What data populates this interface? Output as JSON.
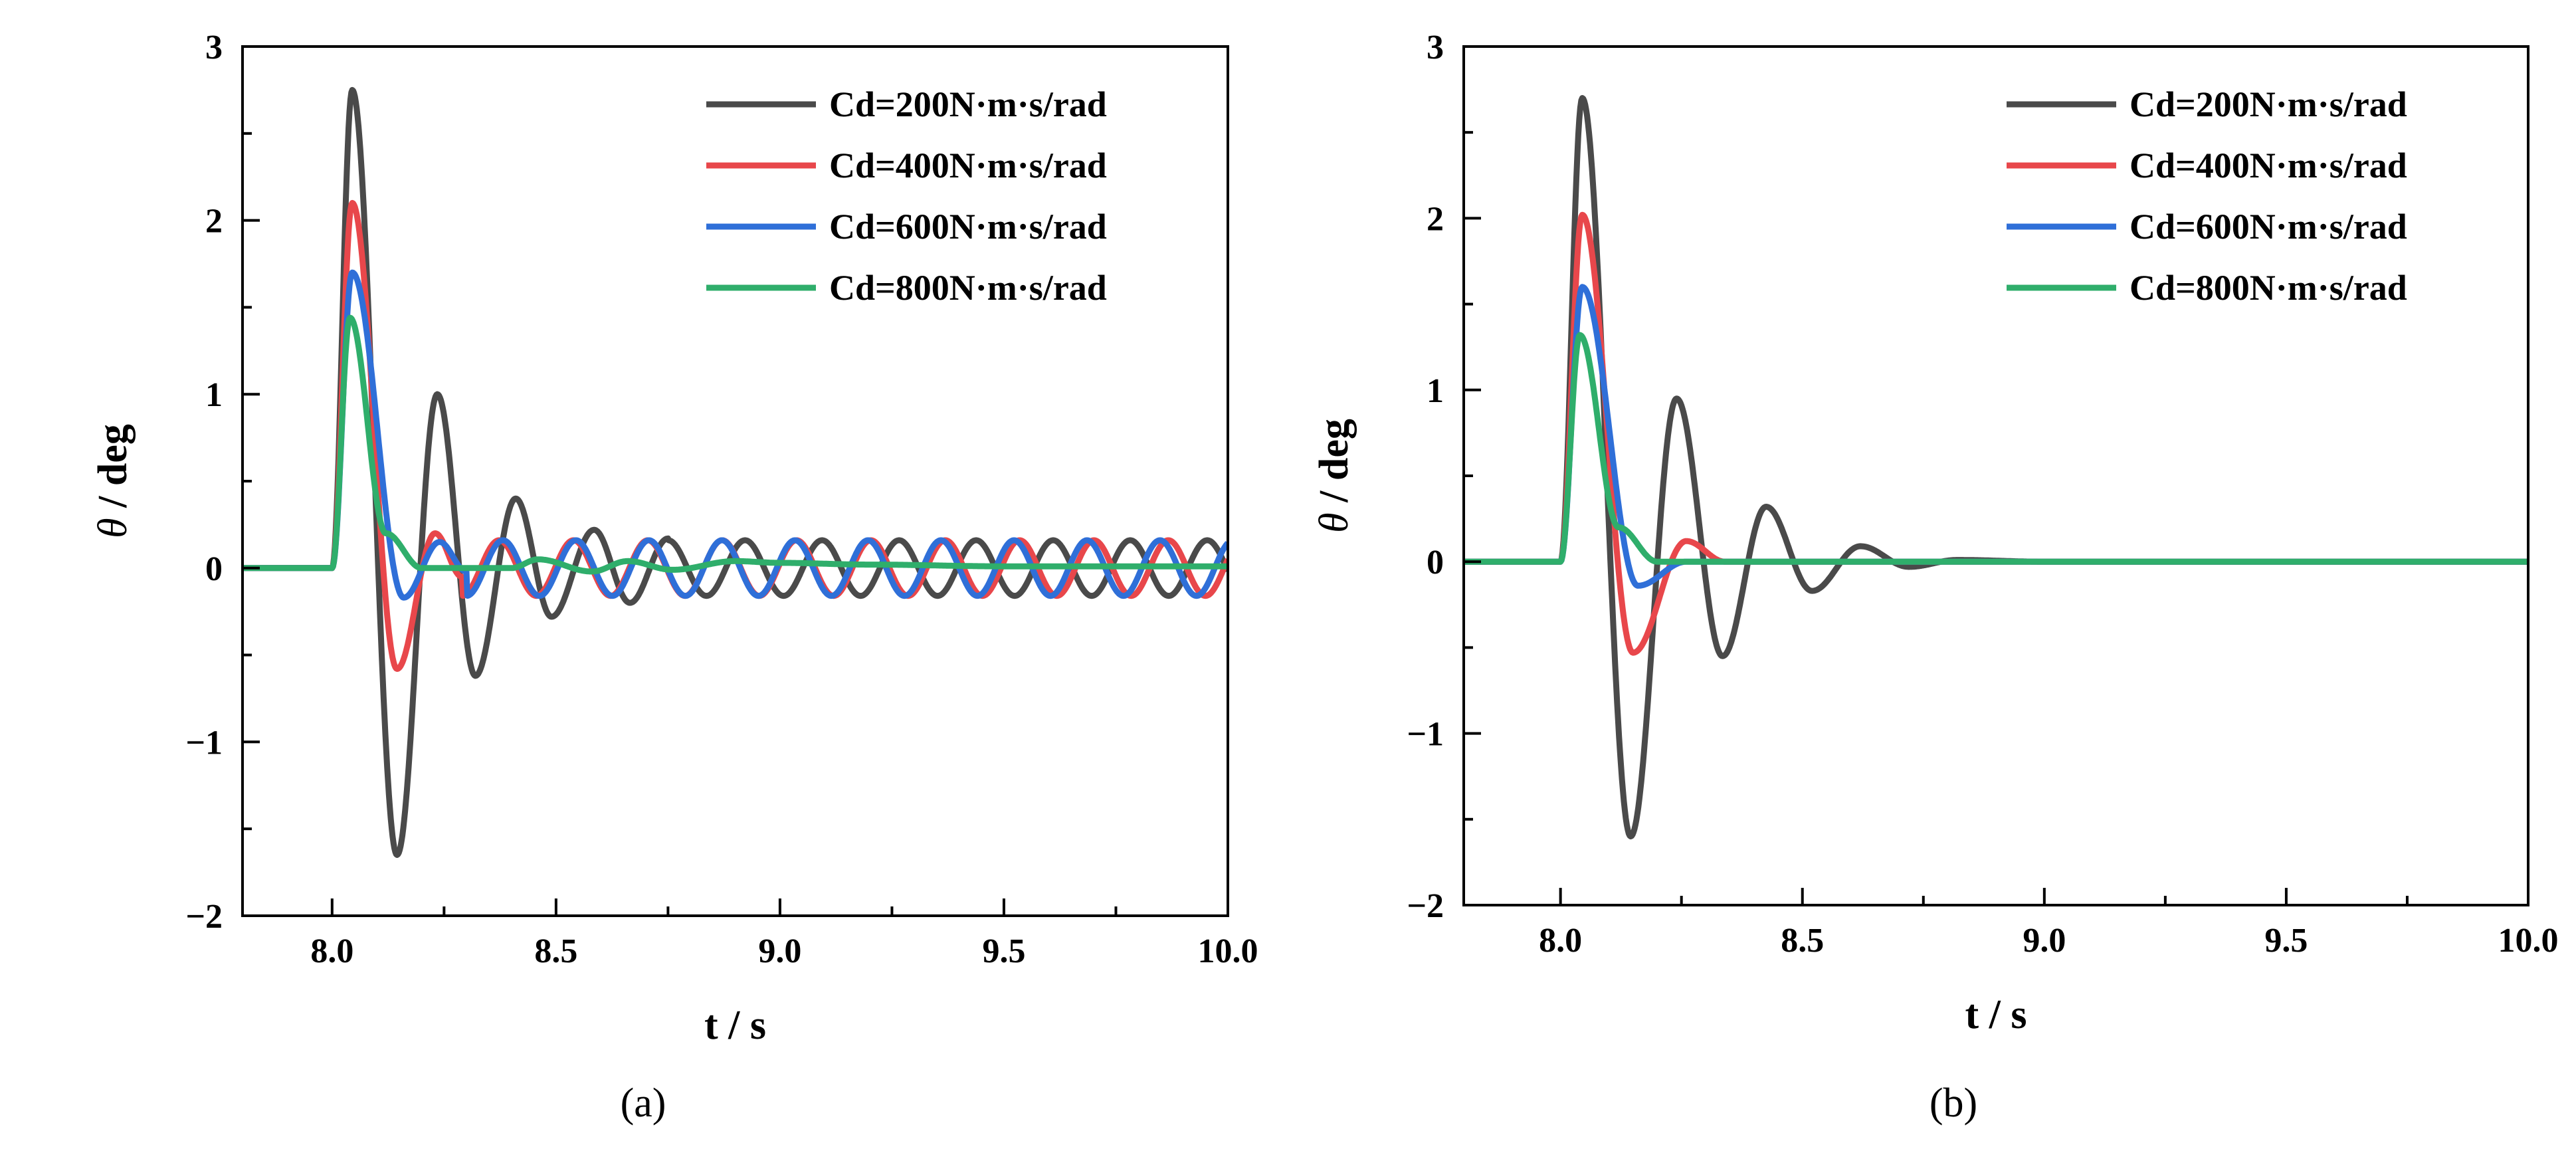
{
  "figure": {
    "panels": [
      {
        "label": "(a)"
      },
      {
        "label": "(b)"
      }
    ]
  },
  "chart_data": [
    {
      "type": "line",
      "panel_label": "(a)",
      "title": "",
      "xlabel": "t / s",
      "ylabel": "θ / deg",
      "ylabel_symbol": "θ",
      "ylabel_unit": " / deg",
      "xlim": [
        7.8,
        10.0
      ],
      "ylim": [
        -2,
        3
      ],
      "xticks": [
        8.0,
        8.5,
        9.0,
        9.5,
        10.0
      ],
      "xtick_labels": [
        "8.0",
        "8.5",
        "9.0",
        "9.5",
        "10.0"
      ],
      "yticks": [
        -2,
        -1,
        0,
        1,
        2,
        3
      ],
      "ytick_labels": [
        "−2",
        "−1",
        "0",
        "1",
        "2",
        "3"
      ],
      "grid": false,
      "legend_position": "top-right",
      "series": [
        {
          "name": "Cd=200N·m·s/rad",
          "color": "#4a4a4a",
          "onset": 8.0,
          "points": [
            [
              7.8,
              0
            ],
            [
              8.0,
              0
            ],
            [
              8.045,
              2.75
            ],
            [
              8.145,
              -1.65
            ],
            [
              8.235,
              1.0
            ],
            [
              8.32,
              -0.62
            ],
            [
              8.41,
              0.4
            ],
            [
              8.49,
              -0.28
            ],
            [
              8.585,
              0.22
            ],
            [
              8.665,
              -0.2
            ],
            [
              8.75,
              0.17
            ]
          ],
          "steady": {
            "amplitude": 0.16,
            "period": 0.172
          }
        },
        {
          "name": "Cd=400N·m·s/rad",
          "color": "#e8474b",
          "onset": 8.0,
          "points": [
            [
              7.8,
              0
            ],
            [
              8.0,
              0
            ],
            [
              8.045,
              2.1
            ],
            [
              8.145,
              -0.58
            ],
            [
              8.23,
              0.2
            ],
            [
              8.29,
              -0.05
            ]
          ],
          "steady": {
            "amplitude": 0.16,
            "period": 0.166
          }
        },
        {
          "name": "Cd=600N·m·s/rad",
          "color": "#2f6fd8",
          "onset": 8.0,
          "points": [
            [
              7.8,
              0
            ],
            [
              8.0,
              0
            ],
            [
              8.045,
              1.7
            ],
            [
              8.16,
              -0.17
            ],
            [
              8.24,
              0.15
            ],
            [
              8.3,
              -0.02
            ]
          ],
          "steady": {
            "amplitude": 0.16,
            "period": 0.163
          }
        },
        {
          "name": "Cd=800N·m·s/rad",
          "color": "#2fae6b",
          "onset": 8.0,
          "points": [
            [
              7.8,
              0
            ],
            [
              8.0,
              0
            ],
            [
              8.04,
              1.44
            ],
            [
              8.12,
              0.2
            ],
            [
              8.2,
              0.0
            ],
            [
              8.4,
              0.0
            ],
            [
              8.46,
              0.05
            ],
            [
              8.58,
              -0.02
            ],
            [
              8.66,
              0.04
            ],
            [
              8.76,
              -0.01
            ],
            [
              8.9,
              0.04
            ],
            [
              9.0,
              0.03
            ],
            [
              9.2,
              0.02
            ],
            [
              9.5,
              0.01
            ],
            [
              10.0,
              0.01
            ]
          ],
          "steady": null
        }
      ]
    },
    {
      "type": "line",
      "panel_label": "(b)",
      "title": "",
      "xlabel": "t / s",
      "ylabel": "θ / deg",
      "ylabel_symbol": "θ",
      "ylabel_unit": " / deg",
      "xlim": [
        7.8,
        10.0
      ],
      "ylim": [
        -2,
        3
      ],
      "xticks": [
        8.0,
        8.5,
        9.0,
        9.5,
        10.0
      ],
      "xtick_labels": [
        "8.0",
        "8.5",
        "9.0",
        "9.5",
        "10.0"
      ],
      "yticks": [
        -2,
        -1,
        0,
        1,
        2,
        3
      ],
      "ytick_labels": [
        "−2",
        "−1",
        "0",
        "1",
        "2",
        "3"
      ],
      "grid": false,
      "legend_position": "top-right",
      "series": [
        {
          "name": "Cd=200N·m·s/rad",
          "color": "#4a4a4a",
          "onset": 8.0,
          "points": [
            [
              7.8,
              0
            ],
            [
              8.0,
              0
            ],
            [
              8.045,
              2.7
            ],
            [
              8.145,
              -1.6
            ],
            [
              8.24,
              0.95
            ],
            [
              8.335,
              -0.55
            ],
            [
              8.425,
              0.32
            ],
            [
              8.52,
              -0.17
            ],
            [
              8.62,
              0.09
            ],
            [
              8.72,
              -0.03
            ],
            [
              8.82,
              0.01
            ],
            [
              9.0,
              0.0
            ],
            [
              10.0,
              0.0
            ]
          ],
          "steady": null
        },
        {
          "name": "Cd=400N·m·s/rad",
          "color": "#e8474b",
          "onset": 8.0,
          "points": [
            [
              7.8,
              0
            ],
            [
              8.0,
              0
            ],
            [
              8.045,
              2.02
            ],
            [
              8.15,
              -0.53
            ],
            [
              8.26,
              0.12
            ],
            [
              8.34,
              0.0
            ],
            [
              10.0,
              0.0
            ]
          ],
          "steady": null
        },
        {
          "name": "Cd=600N·m·s/rad",
          "color": "#2f6fd8",
          "onset": 8.0,
          "points": [
            [
              7.8,
              0
            ],
            [
              8.0,
              0
            ],
            [
              8.045,
              1.6
            ],
            [
              8.16,
              -0.14
            ],
            [
              8.26,
              0.0
            ],
            [
              10.0,
              0.0
            ]
          ],
          "steady": null
        },
        {
          "name": "Cd=800N·m·s/rad",
          "color": "#2fae6b",
          "onset": 8.0,
          "points": [
            [
              7.8,
              0
            ],
            [
              8.0,
              0
            ],
            [
              8.04,
              1.32
            ],
            [
              8.12,
              0.2
            ],
            [
              8.2,
              0.0
            ],
            [
              10.0,
              0.0
            ]
          ],
          "steady": null
        }
      ]
    }
  ]
}
